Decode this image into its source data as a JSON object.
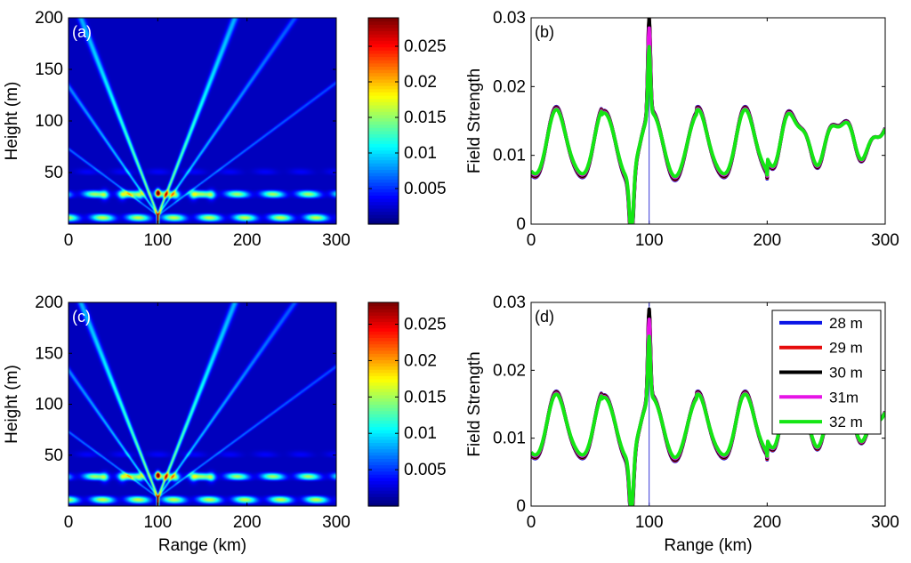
{
  "chart_data": [
    {
      "panel": "(a)",
      "type": "heatmap",
      "xlabel": "",
      "ylabel": "Height (m)",
      "xlim": [
        0,
        300
      ],
      "ylim": [
        0,
        200
      ],
      "xticks": [
        0,
        100,
        200,
        300
      ],
      "yticks": [
        50,
        100,
        150,
        200
      ],
      "colormap": "jet",
      "colorbar": {
        "range": [
          0,
          0.029
        ],
        "ticks": [
          0.005,
          0.01,
          0.015,
          0.02,
          0.025
        ]
      },
      "field": {
        "source_range_km": 100,
        "peak_height_m": 30,
        "peak_value": 0.029,
        "interference_band_top_m": 45,
        "beam_directions": "fan of thin beams radiating upward from 100 km"
      }
    },
    {
      "panel": "(b)",
      "type": "line",
      "xlabel": "",
      "ylabel": "Field Strength",
      "xlim": [
        0,
        300
      ],
      "ylim": [
        0,
        0.03
      ],
      "xticks": [
        0,
        100,
        200,
        300
      ],
      "yticks": [
        0,
        0.01,
        0.02,
        0.03
      ],
      "marker": {
        "x": 100
      },
      "series": [
        {
          "name": "28 m",
          "color": "#0a14e6",
          "peak": 0.0295,
          "scale": 1.06
        },
        {
          "name": "29 m",
          "color": "#e60c0c",
          "peak": 0.0298,
          "scale": 1.04
        },
        {
          "name": "30 m",
          "color": "#000000",
          "peak": 0.03,
          "scale": 1.02
        },
        {
          "name": "31m",
          "color": "#e614e6",
          "peak": 0.0285,
          "scale": 0.99
        },
        {
          "name": "32 m",
          "color": "#14e614",
          "peak": 0.0258,
          "scale": 0.96
        }
      ]
    },
    {
      "panel": "(c)",
      "type": "heatmap",
      "xlabel": "Range (km)",
      "ylabel": "Height (m)",
      "xlim": [
        0,
        300
      ],
      "ylim": [
        0,
        200
      ],
      "xticks": [
        0,
        100,
        200,
        300
      ],
      "yticks": [
        50,
        100,
        150,
        200
      ],
      "colormap": "jet",
      "colorbar": {
        "range": [
          0,
          0.028
        ],
        "ticks": [
          0.005,
          0.01,
          0.015,
          0.02,
          0.025
        ]
      },
      "field": {
        "source_range_km": 100,
        "peak_height_m": 30,
        "peak_value": 0.028,
        "interference_band_top_m": 45,
        "beam_directions": "fan of thin beams radiating upward from 100 km"
      }
    },
    {
      "panel": "(d)",
      "type": "line",
      "xlabel": "Range (km)",
      "ylabel": "Field Strength",
      "xlim": [
        0,
        300
      ],
      "ylim": [
        0,
        0.03
      ],
      "xticks": [
        0,
        100,
        200,
        300
      ],
      "yticks": [
        0,
        0.01,
        0.02,
        0.03
      ],
      "marker": {
        "x": 100
      },
      "legend": {
        "position": "top-right",
        "entries": [
          "28 m",
          "29 m",
          "30 m",
          "31m",
          "32 m"
        ]
      },
      "series": [
        {
          "name": "28 m",
          "color": "#0a14e6",
          "peak": 0.0285,
          "scale": 1.02
        },
        {
          "name": "29 m",
          "color": "#e60c0c",
          "peak": 0.0288,
          "scale": 1.0
        },
        {
          "name": "30 m",
          "color": "#000000",
          "peak": 0.029,
          "scale": 0.98
        },
        {
          "name": "31m",
          "color": "#e614e6",
          "peak": 0.0275,
          "scale": 0.95
        },
        {
          "name": "32 m",
          "color": "#14e614",
          "peak": 0.025,
          "scale": 0.92
        }
      ]
    }
  ]
}
